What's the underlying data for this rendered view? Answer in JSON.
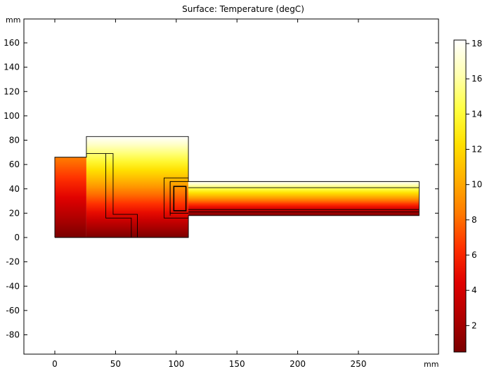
{
  "chart_data": {
    "type": "heatmap",
    "title": "Surface: Temperature (degC)",
    "x_unit_label": "mm",
    "y_unit_label": "mm",
    "xlim": [
      -25,
      310
    ],
    "ylim": [
      -95,
      178
    ],
    "x_ticks": [
      0,
      50,
      100,
      150,
      200,
      250
    ],
    "y_ticks": [
      160,
      140,
      120,
      100,
      80,
      60,
      40,
      20,
      0,
      -20,
      -40,
      -60,
      -80
    ],
    "colorbar": {
      "range": [
        0.5,
        18.2
      ],
      "ticks": [
        18,
        16,
        14,
        12,
        10,
        8,
        6,
        4,
        2
      ],
      "colors": [
        "#7a0000",
        "#b00000",
        "#e00000",
        "#ff3000",
        "#ff7a00",
        "#ffb000",
        "#ffe000",
        "#ffff40",
        "#ffffb0",
        "#ffffff"
      ]
    },
    "regions": [
      {
        "x": [
          0,
          26
        ],
        "y": [
          0,
          66
        ],
        "t_bottom": 0.5,
        "t_top": 8.5
      },
      {
        "x": [
          26,
          110
        ],
        "y": [
          0,
          83
        ],
        "t_bottom": 0.5,
        "t_top": 18.2
      },
      {
        "x": [
          110,
          300
        ],
        "y": [
          18,
          46
        ],
        "t_bottom": 0.5,
        "t_top": 18.2
      }
    ],
    "outlines": [
      [
        [
          0,
          0
        ],
        [
          0,
          66
        ],
        [
          26,
          66
        ],
        [
          26,
          83
        ],
        [
          110,
          83
        ],
        [
          110,
          46
        ],
        [
          300,
          46
        ],
        [
          300,
          18
        ],
        [
          110,
          18
        ],
        [
          110,
          0
        ],
        [
          0,
          0
        ]
      ],
      [
        [
          26,
          66
        ],
        [
          26,
          69
        ],
        [
          42,
          69
        ],
        [
          42,
          16
        ],
        [
          63,
          16
        ],
        [
          63,
          0
        ]
      ],
      [
        [
          42,
          69
        ],
        [
          48,
          69
        ],
        [
          48,
          19
        ],
        [
          68,
          19
        ],
        [
          68,
          0
        ]
      ],
      [
        [
          110,
          49
        ],
        [
          90,
          49
        ],
        [
          90,
          16
        ],
        [
          110,
          16
        ]
      ],
      [
        [
          110,
          46
        ],
        [
          95,
          46
        ],
        [
          95,
          20
        ],
        [
          110,
          20
        ]
      ],
      [
        [
          95,
          46
        ],
        [
          95,
          18
        ]
      ],
      [
        [
          110,
          41
        ],
        [
          300,
          41
        ]
      ],
      [
        [
          110,
          23
        ],
        [
          300,
          23
        ]
      ],
      [
        [
          110,
          21
        ],
        [
          300,
          21
        ]
      ]
    ],
    "inner_box": {
      "x": [
        98,
        108
      ],
      "y": [
        22,
        42
      ]
    }
  }
}
